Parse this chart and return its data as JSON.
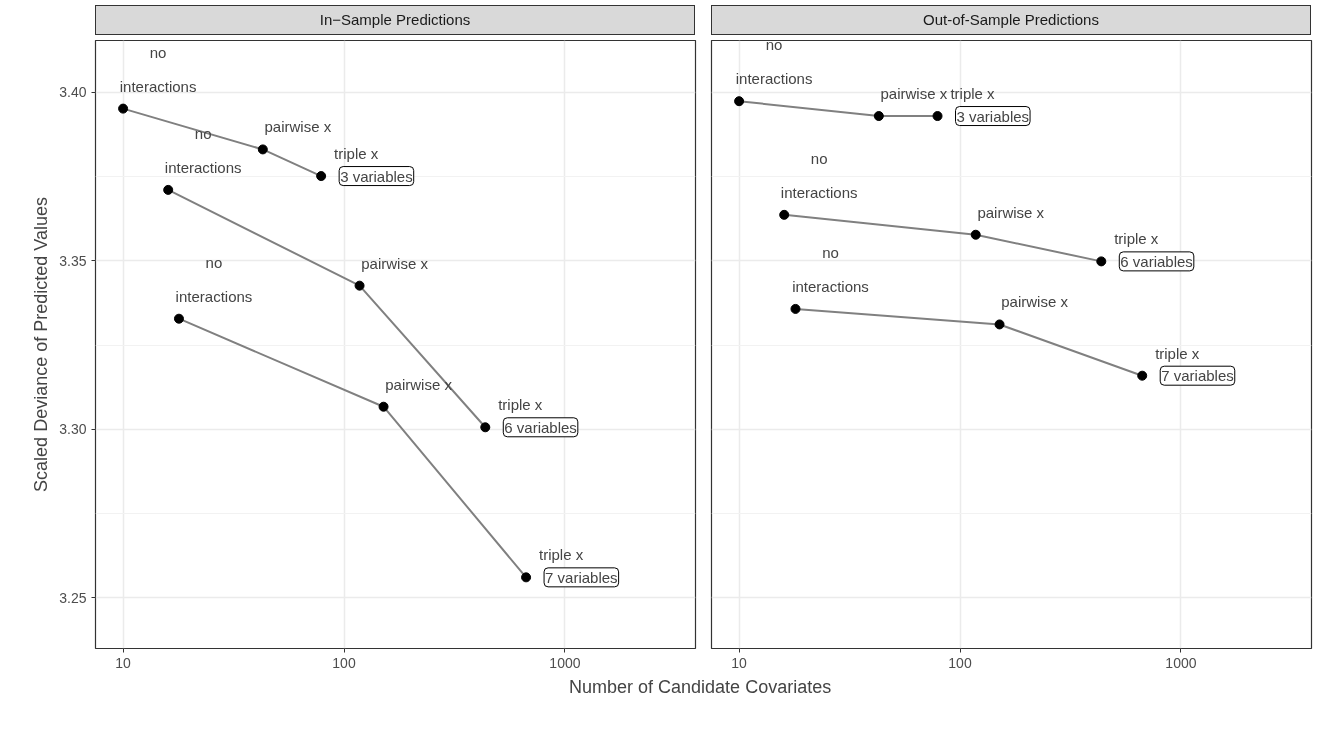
{
  "chart_data": [
    {
      "type": "line",
      "title": "In−Sample Predictions",
      "ylabel": "Scaled Deviance of Predicted Values",
      "xlabel": "Number of Candidate Covariates",
      "log": "x",
      "marker": "circle",
      "line_style": "solid",
      "grid": true,
      "xlim": [
        7.5,
        3900
      ],
      "xticks": [
        10,
        100,
        1000
      ],
      "ylim": [
        3.235,
        3.4153
      ],
      "yticks": [
        {
          "value": 3.25,
          "label": "3.25"
        },
        {
          "value": 3.3,
          "label": "3.30"
        },
        {
          "value": 3.35,
          "label": "3.35"
        },
        {
          "value": 3.4,
          "label": "3.40"
        }
      ],
      "series": [
        {
          "name": "3 variables",
          "color": "#808080",
          "x": [
            10,
            42.9,
            78.8
          ],
          "values": [
            3.3951,
            3.383,
            3.3751
          ]
        },
        {
          "name": "6 variables",
          "color": "#808080",
          "x": [
            16.0,
            117.6,
            436
          ],
          "values": [
            3.371,
            3.3426,
            3.3006
          ]
        },
        {
          "name": "7 variables",
          "color": "#808080",
          "x": [
            17.9,
            151,
            667
          ],
          "values": [
            3.3328,
            3.3067,
            3.2561
          ]
        }
      ],
      "annotations": [
        {
          "text": "no\ninteractions",
          "x": 10,
          "y": 3.3951
        },
        {
          "text": "pairwise x",
          "x": 42.9,
          "y": 3.383
        },
        {
          "text": "triple x",
          "x": 78.8,
          "y": 3.3751
        },
        {
          "text": "no\ninteractions",
          "x": 16.0,
          "y": 3.371
        },
        {
          "text": "pairwise x",
          "x": 117.6,
          "y": 3.3426
        },
        {
          "text": "triple x",
          "x": 436,
          "y": 3.3006
        },
        {
          "text": "no\ninteractions",
          "x": 17.9,
          "y": 3.3328
        },
        {
          "text": "pairwise x",
          "x": 151,
          "y": 3.3067
        },
        {
          "text": "triple x",
          "x": 667,
          "y": 3.2561
        }
      ]
    },
    {
      "type": "line",
      "title": "Out-of-Sample Predictions",
      "log": "x",
      "marker": "circle",
      "line_style": "solid",
      "grid": true,
      "tick_labels": "x",
      "xlim": [
        7.5,
        3900
      ],
      "xticks": [
        10,
        100,
        1000
      ],
      "ylim": [
        3.235,
        3.4153
      ],
      "yticks": [
        3.25,
        3.3,
        3.35,
        3.4
      ],
      "series": [
        {
          "name": "3 variables",
          "color": "#808080",
          "x": [
            10,
            42.9,
            79.1
          ],
          "values": [
            3.3973,
            3.3929,
            3.3929
          ]
        },
        {
          "name": "6 variables",
          "color": "#808080",
          "x": [
            16.0,
            117.8,
            436
          ],
          "values": [
            3.3636,
            3.3577,
            3.3498
          ]
        },
        {
          "name": "7 variables",
          "color": "#808080",
          "x": [
            18.0,
            151,
            668
          ],
          "values": [
            3.3357,
            3.3311,
            3.3159
          ]
        }
      ],
      "annotations": [
        {
          "text": "no\ninteractions",
          "x": 10,
          "y": 3.3973
        },
        {
          "text": "pairwise x",
          "x": 42.9,
          "y": 3.3929
        },
        {
          "text": "triple x",
          "x": 79.1,
          "y": 3.3929
        },
        {
          "text": "no\ninteractions",
          "x": 16.0,
          "y": 3.3636
        },
        {
          "text": "pairwise x",
          "x": 117.8,
          "y": 3.3577
        },
        {
          "text": "triple x",
          "x": 436,
          "y": 3.3498
        },
        {
          "text": "no\ninteractions",
          "x": 18.0,
          "y": 3.3357
        },
        {
          "text": "pairwise x",
          "x": 151,
          "y": 3.3311
        },
        {
          "text": "triple x",
          "x": 668,
          "y": 3.3159
        }
      ]
    }
  ]
}
